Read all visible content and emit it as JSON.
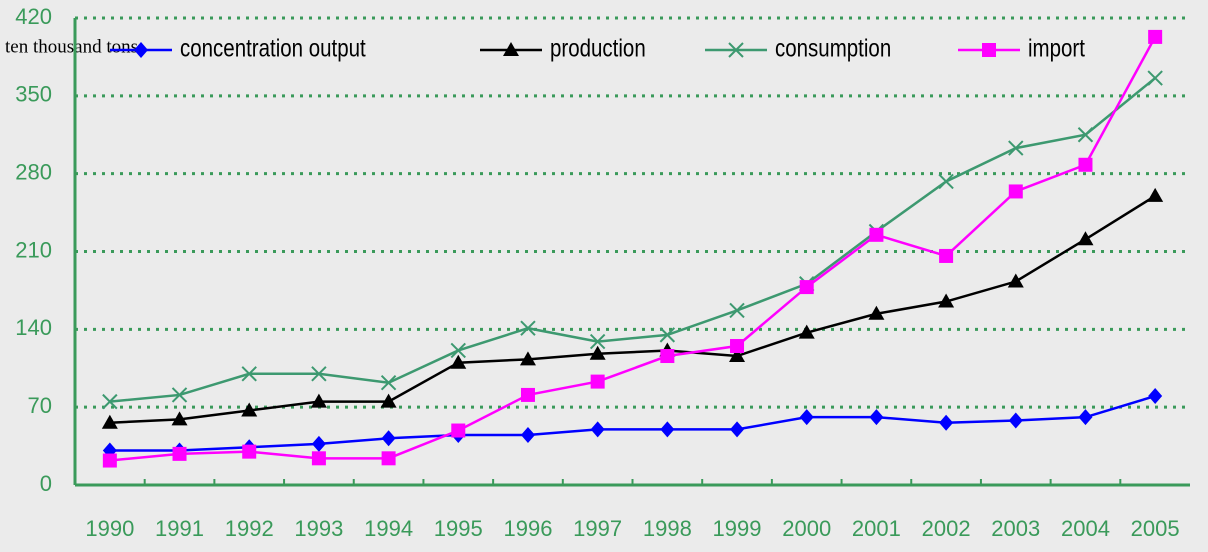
{
  "chart_data": {
    "type": "line",
    "y_axis_label": "ten thousand tons",
    "categories": [
      "1990",
      "1991",
      "1992",
      "1993",
      "1994",
      "1995",
      "1996",
      "1997",
      "1998",
      "1999",
      "2000",
      "2001",
      "2002",
      "2003",
      "2004",
      "2005"
    ],
    "series": [
      {
        "name": "concentration output",
        "color": "#0000ff",
        "marker": "diamond",
        "values": [
          31,
          31,
          34,
          37,
          42,
          45,
          45,
          50,
          50,
          50,
          61,
          61,
          56,
          58,
          61,
          80
        ]
      },
      {
        "name": "production",
        "color": "#000000",
        "marker": "triangle",
        "values": [
          56,
          59,
          67,
          75,
          75,
          110,
          113,
          118,
          121,
          116,
          137,
          154,
          165,
          183,
          221,
          260
        ]
      },
      {
        "name": "consumption",
        "color": "#3d9970",
        "marker": "x",
        "values": [
          75,
          81,
          100,
          100,
          92,
          121,
          141,
          129,
          135,
          157,
          181,
          228,
          273,
          303,
          315,
          366
        ]
      },
      {
        "name": "import",
        "color": "#ff00ff",
        "marker": "square",
        "values": [
          22,
          28,
          30,
          24,
          24,
          49,
          81,
          93,
          116,
          125,
          178,
          225,
          206,
          264,
          288,
          403
        ]
      }
    ],
    "ylim": [
      0,
      420
    ],
    "yticks": [
      0,
      70,
      140,
      210,
      280,
      350,
      420
    ],
    "grid": true,
    "legend": "top"
  }
}
